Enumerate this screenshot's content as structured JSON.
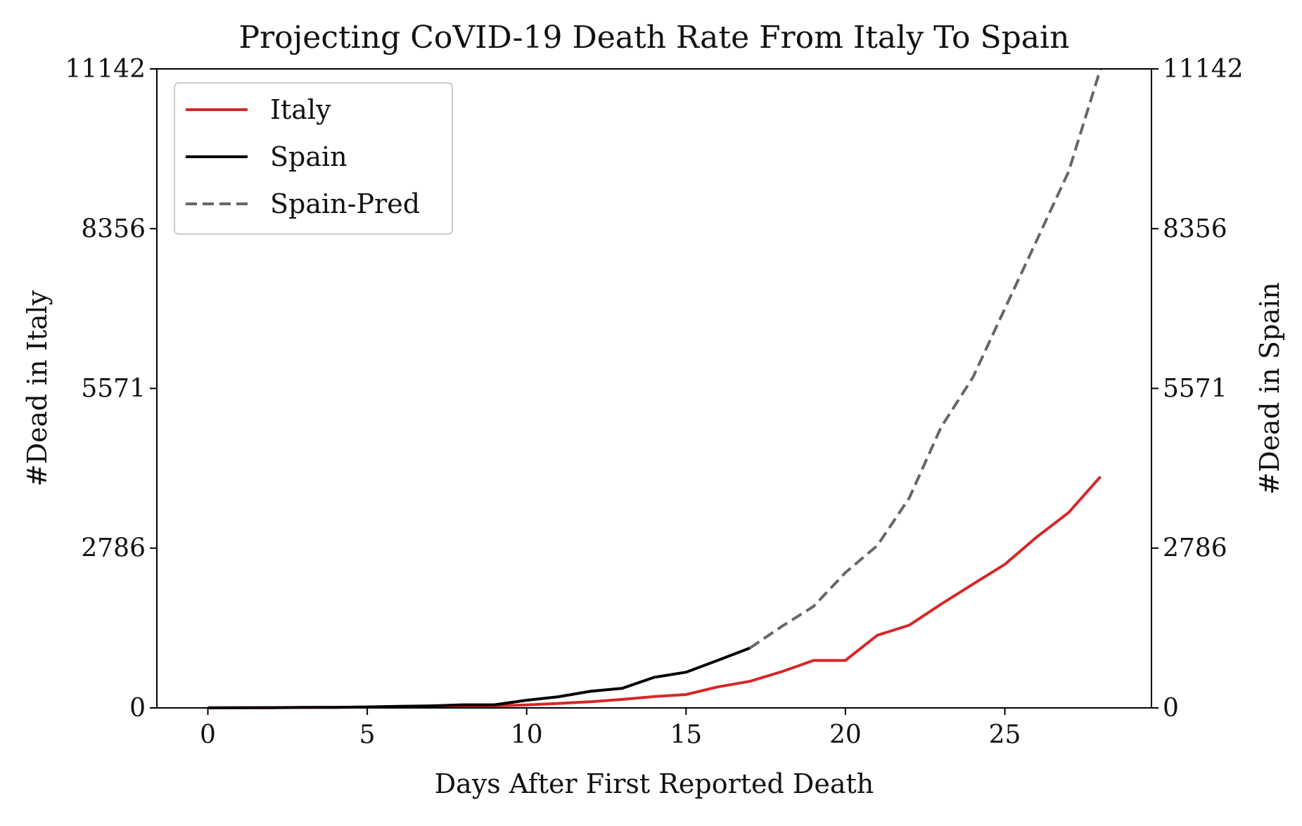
{
  "chart_data": {
    "type": "line",
    "title": "Projecting CoVID-19 Death Rate From Italy To Spain",
    "xlabel": "Days After First Reported Death",
    "ylabel_left": "#Dead in Italy",
    "ylabel_right": "#Dead in Spain",
    "xlim": [
      -1.6,
      29.6
    ],
    "ylim": [
      0,
      11142
    ],
    "x_ticks": [
      0,
      5,
      10,
      15,
      20,
      25
    ],
    "x_tick_labels": [
      "0",
      "5",
      "10",
      "15",
      "20",
      "25"
    ],
    "y_ticks": [
      0,
      2786,
      5571,
      8356,
      11142
    ],
    "y_tick_labels": [
      "0",
      "2786",
      "5571",
      "8356",
      "11142"
    ],
    "legend_position": "top-left",
    "grid": false,
    "series": [
      {
        "name": "Italy",
        "color": "#d62728",
        "style": "solid",
        "x": [
          0,
          1,
          2,
          3,
          4,
          5,
          6,
          7,
          8,
          9,
          10,
          11,
          12,
          13,
          14,
          15,
          16,
          17,
          18,
          19,
          20,
          21,
          22,
          23,
          24,
          25,
          26,
          27,
          28
        ],
        "y": [
          1,
          2,
          3,
          7,
          10,
          12,
          17,
          21,
          29,
          34,
          52,
          79,
          107,
          148,
          197,
          233,
          366,
          463,
          631,
          827,
          827,
          1266,
          1441,
          1809,
          2158,
          2503,
          2978,
          3405,
          4032
        ]
      },
      {
        "name": "Spain",
        "color": "#000000",
        "style": "solid",
        "x": [
          0,
          1,
          2,
          3,
          4,
          5,
          6,
          7,
          8,
          9,
          10,
          11,
          12,
          13,
          14,
          15,
          16,
          17
        ],
        "y": [
          1,
          3,
          5,
          8,
          10,
          17,
          28,
          35,
          54,
          55,
          133,
          195,
          289,
          342,
          533,
          623,
          830,
          1043
        ]
      },
      {
        "name": "Spain-Pred",
        "color": "#666666",
        "style": "dashed",
        "x": [
          17,
          18,
          19,
          20,
          21,
          22,
          23,
          24,
          25,
          26,
          27,
          28
        ],
        "y": [
          1043,
          1420,
          1770,
          2360,
          2830,
          3659,
          4895,
          5765,
          6960,
          8150,
          9350,
          11142
        ]
      }
    ]
  }
}
